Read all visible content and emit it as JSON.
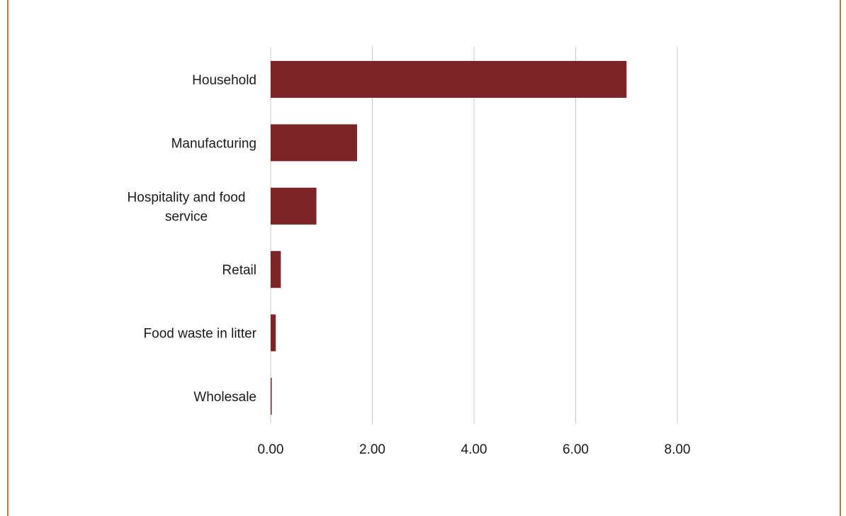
{
  "colors": {
    "bar": "#7d2426",
    "grid": "#c8c8c8",
    "frame": "#c8742c",
    "text": "#1a1a1a"
  },
  "chart_data": {
    "type": "bar",
    "orientation": "horizontal",
    "title": "",
    "xlabel": "",
    "ylabel": "",
    "categories": [
      [
        "Household"
      ],
      [
        "Manufacturing"
      ],
      [
        "Hospitality and food",
        "service"
      ],
      [
        "Retail"
      ],
      [
        "Food waste in litter"
      ],
      [
        "Wholesale"
      ]
    ],
    "values": [
      7.0,
      1.7,
      0.9,
      0.2,
      0.1,
      0.01
    ],
    "xlim": [
      0,
      8
    ],
    "x_ticks": [
      0,
      2,
      4,
      6,
      8
    ],
    "x_tick_labels": [
      "0.00",
      "2.00",
      "4.00",
      "6.00",
      "8.00"
    ],
    "grid": "vertical",
    "legend": "none"
  }
}
